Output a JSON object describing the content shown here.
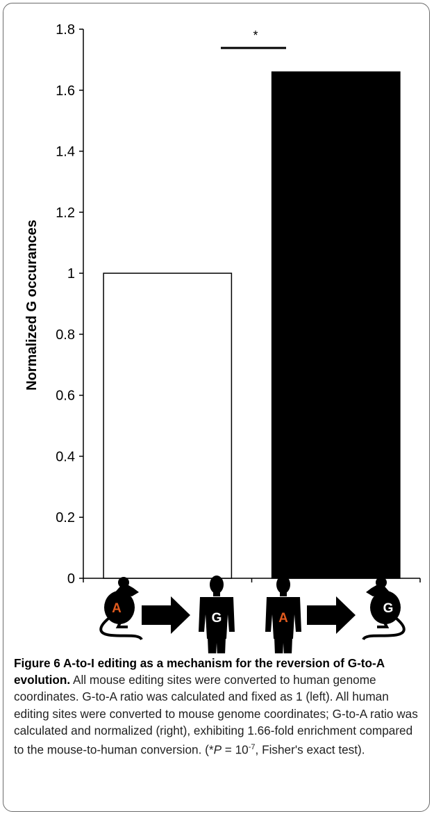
{
  "chart_data": {
    "type": "bar",
    "categories": [
      "mouse-to-human",
      "human-to-mouse"
    ],
    "values": [
      1.0,
      1.66
    ],
    "bar_colors": [
      "#ffffff",
      "#000000"
    ],
    "ylabel": "Normalized G occurances",
    "xlabel": "",
    "ylim": [
      0,
      1.8
    ],
    "yticks": [
      "0",
      "0.2",
      "0.4",
      "0.6",
      "0.8",
      "1",
      "1.2",
      "1.4",
      "1.6",
      "1.8"
    ],
    "grid": false,
    "significance_marker": "*"
  },
  "icons": {
    "left": {
      "source_icon": "mouse-icon",
      "source_letter": "A",
      "target_icon": "human-icon",
      "target_letter": "G"
    },
    "right": {
      "source_icon": "human-icon",
      "source_letter": "A",
      "target_icon": "mouse-icon",
      "target_letter": "G"
    },
    "accent_color": "#e05a1e"
  },
  "caption": {
    "title": "Figure 6 A-to-I editing as a mechanism for the reversion of G-to-A evolution.",
    "body": " All mouse editing sites were converted to human genome coordinates. G-to-A ratio was calculated and fixed as 1 (left). All human editing sites were converted to mouse genome coordinates; G-to-A ratio was calculated and normalized (right), exhibiting 1.66-fold enrichment compared to the mouse-to-human conversion. (*",
    "p_label": "P",
    "p_eq": " = 10",
    "p_exp": "-7",
    "tail": ", Fisher's exact test)."
  }
}
